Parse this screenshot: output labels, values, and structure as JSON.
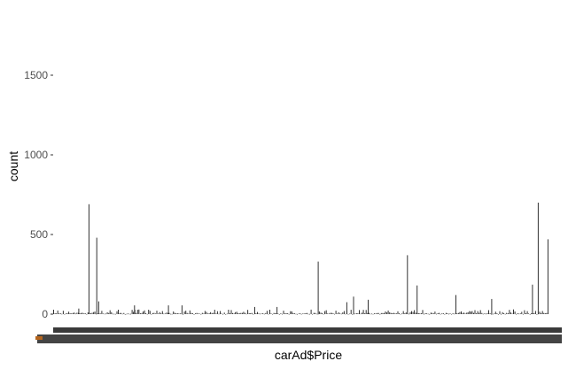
{
  "chart_data": {
    "type": "bar",
    "xlabel": "carAd$Price",
    "ylabel": "count",
    "ylim": [
      0,
      1800
    ],
    "yticks": [
      {
        "value": 0,
        "label": "0"
      },
      {
        "value": 500,
        "label": "500"
      },
      {
        "value": 1000,
        "label": "1000"
      },
      {
        "value": 1500,
        "label": "1500"
      }
    ],
    "x_tick_labels": "unreadable (overlapping)",
    "grid": false,
    "spikes": [
      {
        "x": 0.073,
        "count": 690
      },
      {
        "x": 0.089,
        "count": 480
      },
      {
        "x": 0.093,
        "count": 80
      },
      {
        "x": 0.052,
        "count": 35
      },
      {
        "x": 0.167,
        "count": 55
      },
      {
        "x": 0.237,
        "count": 55
      },
      {
        "x": 0.265,
        "count": 55
      },
      {
        "x": 0.415,
        "count": 45
      },
      {
        "x": 0.461,
        "count": 45
      },
      {
        "x": 0.546,
        "count": 330
      },
      {
        "x": 0.605,
        "count": 75
      },
      {
        "x": 0.619,
        "count": 110
      },
      {
        "x": 0.649,
        "count": 90
      },
      {
        "x": 0.73,
        "count": 370
      },
      {
        "x": 0.75,
        "count": 180
      },
      {
        "x": 0.83,
        "count": 120
      },
      {
        "x": 0.904,
        "count": 95
      },
      {
        "x": 0.988,
        "count": 185
      },
      {
        "x": 1.0,
        "count": 700
      },
      {
        "x": 1.02,
        "count": 470
      }
    ]
  }
}
